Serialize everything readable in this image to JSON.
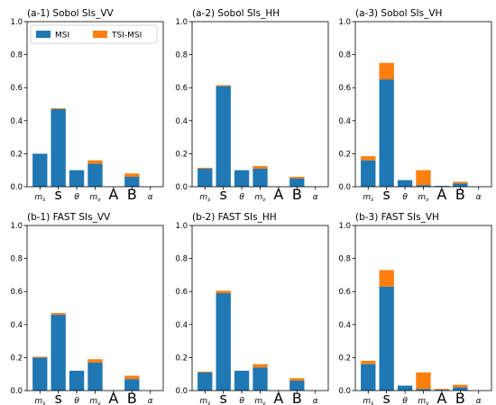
{
  "legend": {
    "entries": [
      {
        "label": "MSI",
        "color": "#1f77b4"
      },
      {
        "label": "TSI-MSI",
        "color": "#ff7f0e"
      }
    ],
    "placement": "top-left of first panel"
  },
  "chart_data": [
    {
      "type": "bar",
      "stacked": true,
      "title": "(a-1) Sobol SIs_VV",
      "categories": [
        "m_s",
        "s",
        "θ",
        "m_v",
        "A",
        "B",
        "α"
      ],
      "ylim": [
        0,
        1.0
      ],
      "yticks": [
        0.0,
        0.2,
        0.4,
        0.6,
        0.8,
        1.0
      ],
      "series": [
        {
          "name": "MSI",
          "values": [
            0.2,
            0.47,
            0.1,
            0.14,
            0.0,
            0.06,
            0.0
          ]
        },
        {
          "name": "TSI-MSI",
          "values": [
            0.0,
            0.005,
            0.0,
            0.02,
            0.0,
            0.02,
            0.0
          ]
        }
      ]
    },
    {
      "type": "bar",
      "stacked": true,
      "title": "(a-2) Sobol SIs_HH",
      "categories": [
        "m_s",
        "s",
        "θ",
        "m_v",
        "A",
        "B",
        "α"
      ],
      "ylim": [
        0,
        1.0
      ],
      "yticks": [
        0.0,
        0.2,
        0.4,
        0.6,
        0.8,
        1.0
      ],
      "series": [
        {
          "name": "MSI",
          "values": [
            0.11,
            0.61,
            0.1,
            0.11,
            0.0,
            0.05,
            0.0
          ]
        },
        {
          "name": "TSI-MSI",
          "values": [
            0.005,
            0.005,
            0.0,
            0.015,
            0.0,
            0.01,
            0.0
          ]
        }
      ]
    },
    {
      "type": "bar",
      "stacked": true,
      "title": "(a-3) Sobol SIs_VH",
      "categories": [
        "m_s",
        "s",
        "θ",
        "m_v",
        "A",
        "B",
        "α"
      ],
      "ylim": [
        0,
        1.0
      ],
      "yticks": [
        0.0,
        0.2,
        0.4,
        0.6,
        0.8,
        1.0
      ],
      "series": [
        {
          "name": "MSI",
          "values": [
            0.16,
            0.65,
            0.04,
            0.01,
            0.005,
            0.02,
            0.0
          ]
        },
        {
          "name": "TSI-MSI",
          "values": [
            0.025,
            0.1,
            0.0,
            0.09,
            0.0,
            0.01,
            0.0
          ]
        }
      ]
    },
    {
      "type": "bar",
      "stacked": true,
      "title": "(b-1) FAST SIs_VV",
      "categories": [
        "m_s",
        "s",
        "θ",
        "m_v",
        "A",
        "B",
        "α"
      ],
      "ylim": [
        0,
        1.0
      ],
      "yticks": [
        0.0,
        0.2,
        0.4,
        0.6,
        0.8,
        1.0
      ],
      "series": [
        {
          "name": "MSI",
          "values": [
            0.2,
            0.46,
            0.12,
            0.17,
            0.0,
            0.07,
            0.0
          ]
        },
        {
          "name": "TSI-MSI",
          "values": [
            0.005,
            0.01,
            0.0,
            0.02,
            0.0,
            0.02,
            0.0
          ]
        }
      ]
    },
    {
      "type": "bar",
      "stacked": true,
      "title": "(b-2) FAST SIs_HH",
      "categories": [
        "m_s",
        "s",
        "θ",
        "m_v",
        "A",
        "B",
        "α"
      ],
      "ylim": [
        0,
        1.0
      ],
      "yticks": [
        0.0,
        0.2,
        0.4,
        0.6,
        0.8,
        1.0
      ],
      "series": [
        {
          "name": "MSI",
          "values": [
            0.11,
            0.59,
            0.12,
            0.14,
            0.0,
            0.06,
            0.0
          ]
        },
        {
          "name": "TSI-MSI",
          "values": [
            0.005,
            0.015,
            0.0,
            0.02,
            0.0,
            0.015,
            0.0
          ]
        }
      ]
    },
    {
      "type": "bar",
      "stacked": true,
      "title": "(b-3) FAST SIs_VH",
      "categories": [
        "m_s",
        "s",
        "θ",
        "m_v",
        "A",
        "B",
        "α"
      ],
      "ylim": [
        0,
        1.0
      ],
      "yticks": [
        0.0,
        0.2,
        0.4,
        0.6,
        0.8,
        1.0
      ],
      "series": [
        {
          "name": "MSI",
          "values": [
            0.16,
            0.63,
            0.03,
            0.01,
            0.005,
            0.02,
            0.0
          ]
        },
        {
          "name": "TSI-MSI",
          "values": [
            0.02,
            0.1,
            0.0,
            0.1,
            0.005,
            0.015,
            0.0
          ]
        }
      ]
    }
  ]
}
